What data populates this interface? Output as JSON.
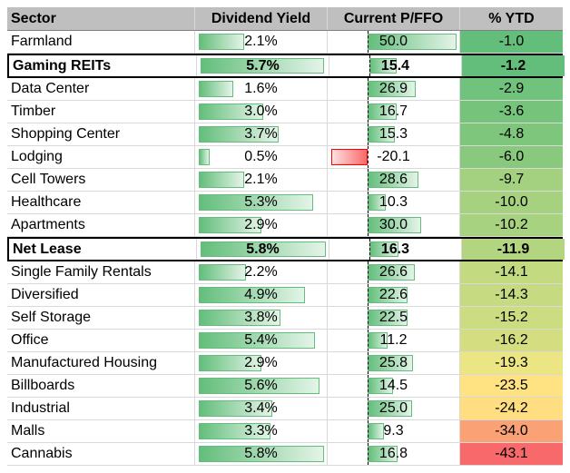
{
  "chart_data": {
    "type": "table",
    "columns": [
      "Sector",
      "Dividend Yield",
      "Current P/FFO",
      "% YTD"
    ],
    "rows": [
      {
        "sector": "Farmland",
        "yield": 2.1,
        "yield_label": "2.1%",
        "pffo": 50.0,
        "pffo_label": "50.0",
        "ytd": -1.0,
        "ytd_label": "-1.0",
        "highlight": false
      },
      {
        "sector": "Gaming REITs",
        "yield": 5.7,
        "yield_label": "5.7%",
        "pffo": 15.4,
        "pffo_label": "15.4",
        "ytd": -1.2,
        "ytd_label": "-1.2",
        "highlight": true
      },
      {
        "sector": "Data Center",
        "yield": 1.6,
        "yield_label": "1.6%",
        "pffo": 26.9,
        "pffo_label": "26.9",
        "ytd": -2.9,
        "ytd_label": "-2.9",
        "highlight": false
      },
      {
        "sector": "Timber",
        "yield": 3.0,
        "yield_label": "3.0%",
        "pffo": 16.7,
        "pffo_label": "16.7",
        "ytd": -3.6,
        "ytd_label": "-3.6",
        "highlight": false
      },
      {
        "sector": "Shopping Center",
        "yield": 3.7,
        "yield_label": "3.7%",
        "pffo": 15.3,
        "pffo_label": "15.3",
        "ytd": -4.8,
        "ytd_label": "-4.8",
        "highlight": false
      },
      {
        "sector": "Lodging",
        "yield": 0.5,
        "yield_label": "0.5%",
        "pffo": -20.1,
        "pffo_label": "-20.1",
        "ytd": -6.0,
        "ytd_label": "-6.0",
        "highlight": false
      },
      {
        "sector": "Cell Towers",
        "yield": 2.1,
        "yield_label": "2.1%",
        "pffo": 28.6,
        "pffo_label": "28.6",
        "ytd": -9.7,
        "ytd_label": "-9.7",
        "highlight": false
      },
      {
        "sector": "Healthcare",
        "yield": 5.3,
        "yield_label": "5.3%",
        "pffo": 10.3,
        "pffo_label": "10.3",
        "ytd": -10.0,
        "ytd_label": "-10.0",
        "highlight": false
      },
      {
        "sector": "Apartments",
        "yield": 2.9,
        "yield_label": "2.9%",
        "pffo": 30.0,
        "pffo_label": "30.0",
        "ytd": -10.2,
        "ytd_label": "-10.2",
        "highlight": false
      },
      {
        "sector": "Net Lease",
        "yield": 5.8,
        "yield_label": "5.8%",
        "pffo": 16.3,
        "pffo_label": "16.3",
        "ytd": -11.9,
        "ytd_label": "-11.9",
        "highlight": true
      },
      {
        "sector": "Single Family Rentals",
        "yield": 2.2,
        "yield_label": "2.2%",
        "pffo": 26.6,
        "pffo_label": "26.6",
        "ytd": -14.1,
        "ytd_label": "-14.1",
        "highlight": false
      },
      {
        "sector": "Diversified",
        "yield": 4.9,
        "yield_label": "4.9%",
        "pffo": 22.6,
        "pffo_label": "22.6",
        "ytd": -14.3,
        "ytd_label": "-14.3",
        "highlight": false
      },
      {
        "sector": "Self Storage",
        "yield": 3.8,
        "yield_label": "3.8%",
        "pffo": 22.5,
        "pffo_label": "22.5",
        "ytd": -15.2,
        "ytd_label": "-15.2",
        "highlight": false
      },
      {
        "sector": "Office",
        "yield": 5.4,
        "yield_label": "5.4%",
        "pffo": 11.2,
        "pffo_label": "11.2",
        "ytd": -16.2,
        "ytd_label": "-16.2",
        "highlight": false
      },
      {
        "sector": "Manufactured Housing",
        "yield": 2.9,
        "yield_label": "2.9%",
        "pffo": 25.8,
        "pffo_label": "25.8",
        "ytd": -19.3,
        "ytd_label": "-19.3",
        "highlight": false
      },
      {
        "sector": "Billboards",
        "yield": 5.6,
        "yield_label": "5.6%",
        "pffo": 14.5,
        "pffo_label": "14.5",
        "ytd": -23.5,
        "ytd_label": "-23.5",
        "highlight": false
      },
      {
        "sector": "Industrial",
        "yield": 3.4,
        "yield_label": "3.4%",
        "pffo": 25.0,
        "pffo_label": "25.0",
        "ytd": -24.2,
        "ytd_label": "-24.2",
        "highlight": false
      },
      {
        "sector": "Malls",
        "yield": 3.3,
        "yield_label": "3.3%",
        "pffo": 9.3,
        "pffo_label": "9.3",
        "ytd": -34.0,
        "ytd_label": "-34.0",
        "highlight": false
      },
      {
        "sector": "Cannabis",
        "yield": 5.8,
        "yield_label": "5.8%",
        "pffo": 16.8,
        "pffo_label": "16.8",
        "ytd": -43.1,
        "ytd_label": "-43.1",
        "highlight": false
      }
    ],
    "yield_bar_max": 5.8,
    "pffo_bar_range": [
      -20.1,
      50.0
    ],
    "ytd_color_scale": {
      "best": "#63be7b",
      "mid": "#ffeb84",
      "worst": "#f8696b"
    },
    "bar_colors": {
      "positive": "#63be7b",
      "negative": "#f8696b"
    }
  }
}
